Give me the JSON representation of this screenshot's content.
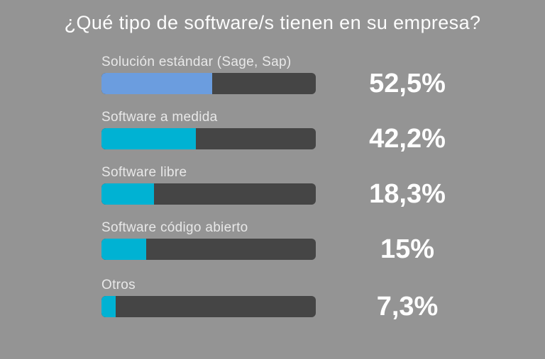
{
  "page": {
    "background_color": "#949494",
    "title": "¿Qué tipo de software/s tienen en su empresa?"
  },
  "chart_data": {
    "type": "bar",
    "orientation": "horizontal",
    "title": "¿Qué tipo de software/s tienen en su empresa?",
    "categories": [
      "Solución estándar (Sage, Sap)",
      "Software a medida",
      "Software libre",
      "Software código abierto",
      "Otros"
    ],
    "values": [
      52.5,
      42.2,
      18.3,
      15,
      7.3
    ],
    "value_labels": [
      "52,5%",
      "42,2%",
      "18,3%",
      "15%",
      "7,3%"
    ],
    "xlim": [
      0,
      100
    ],
    "grid": false,
    "legend": false,
    "colors": {
      "highlight_fill": "#6b9ddf",
      "default_fill": "#00b2d3",
      "track": "#454545",
      "category_label": "#e8e8e8",
      "value_label": "#ffffff",
      "background": "#949494"
    }
  },
  "bars": [
    {
      "label": "Solución estándar (Sage, Sap)",
      "value": 52.5,
      "value_label": "52,5%",
      "fill_color": "#6b9ddf",
      "fill_pct": 51.5
    },
    {
      "label": "Software a medida",
      "value": 42.2,
      "value_label": "42,2%",
      "fill_color": "#00b2d3",
      "fill_pct": 44
    },
    {
      "label": "Software libre",
      "value": 18.3,
      "value_label": "18,3%",
      "fill_color": "#00b2d3",
      "fill_pct": 24.5
    },
    {
      "label": "Software código abierto",
      "value": 15,
      "value_label": "15%",
      "fill_color": "#00b2d3",
      "fill_pct": 21
    },
    {
      "label": "Otros",
      "value": 7.3,
      "value_label": "7,3%",
      "fill_color": "#00b2d3",
      "fill_pct": 6.5
    }
  ]
}
